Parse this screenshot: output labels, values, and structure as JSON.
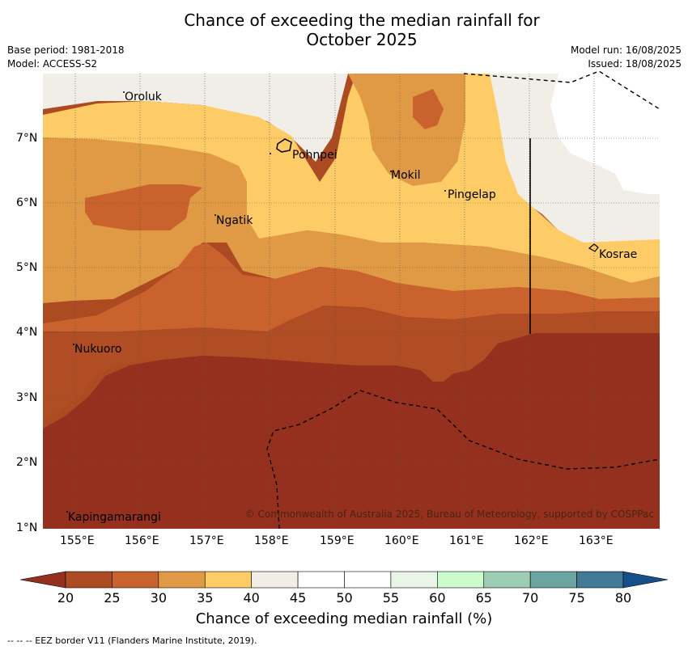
{
  "header": {
    "title_line1": "Chance of exceeding the median rainfall for",
    "title_line2": "October 2025",
    "base_period": "Base period: 1981-2018",
    "model": "Model: ACCESS-S2",
    "model_run": "Model run: 16/08/2025",
    "issued": "Issued: 18/08/2025"
  },
  "map": {
    "lon_ticks": [
      "155°E",
      "156°E",
      "157°E",
      "158°E",
      "159°E",
      "160°E",
      "161°E",
      "162°E",
      "163°E"
    ],
    "lat_ticks": [
      "7°N",
      "6°N",
      "5°N",
      "4°N",
      "3°N",
      "2°N",
      "1°N"
    ],
    "places": {
      "oroluk": "Oroluk",
      "pohnpei": "Pohnpei",
      "mokil": "Mokil",
      "pingelap": "Pingelap",
      "ngatik": "Ngatik",
      "kosrae": "Kosrae",
      "nukuoro": "Nukuoro",
      "kapingamarangi": "Kapingamarangi"
    },
    "credit": "© Commonwealth of Australia 2025, Bureau of Meteorology, supported by COSPPac"
  },
  "colorbar": {
    "ticks": [
      "20",
      "25",
      "30",
      "35",
      "40",
      "45",
      "50",
      "55",
      "60",
      "65",
      "70",
      "75",
      "80"
    ],
    "colors": [
      "#ac4a22",
      "#c9622c",
      "#e09a46",
      "#fecc66",
      "#f1ede7",
      "#ffffff",
      "#ffffff",
      "#e9f5e6",
      "#ccfccc",
      "#9dcdb4",
      "#6ba4a1",
      "#417996"
    ],
    "low_extend_color": "#96301e",
    "high_extend_color": "#174f8a",
    "label": "Chance of exceeding median rainfall (%)"
  },
  "footer": "--  --  -- EEZ border V11 (Flanders Marine Institute, 2019)."
}
